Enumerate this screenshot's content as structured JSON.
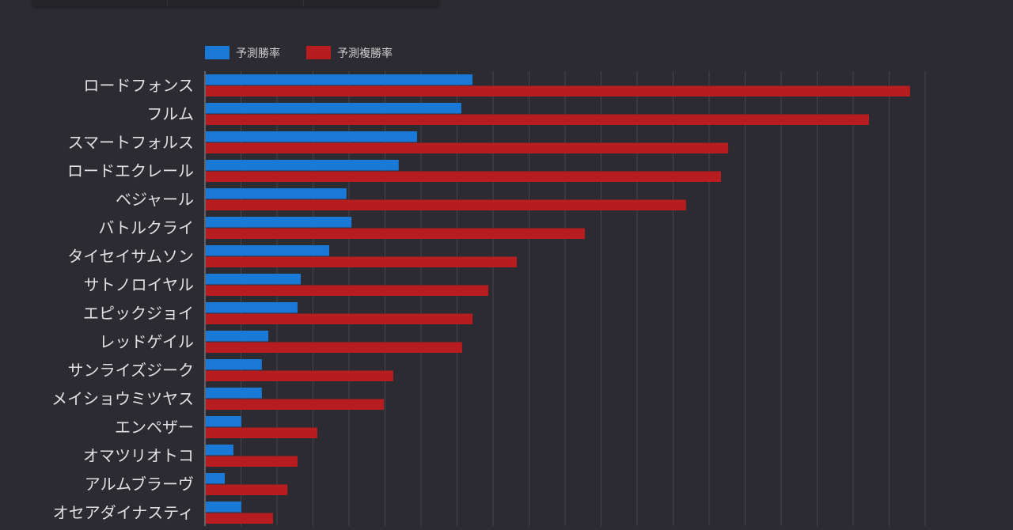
{
  "chart_data": {
    "type": "bar",
    "orientation": "horizontal",
    "title": "",
    "xlabel": "",
    "ylabel": "",
    "xlim": [
      0,
      20
    ],
    "grid": true,
    "legend_placement": "top-left",
    "categories": [
      "ロードフォンス",
      "フルム",
      "スマートフォルス",
      "ロードエクレール",
      "ベジャール",
      "バトルクライ",
      "タイセイサムソン",
      "サトノロイヤル",
      "エピックジョイ",
      "レッドゲイル",
      "サンライズジーク",
      "メイショウミツヤス",
      "エンペザー",
      "オマツリオトコ",
      "アルムブラーヴ",
      "オセアダイナスティ"
    ],
    "series": [
      {
        "name": "予測勝率",
        "color": "#1a78d6",
        "values": [
          7.43,
          7.12,
          5.89,
          5.38,
          3.93,
          4.07,
          3.45,
          2.66,
          2.57,
          1.76,
          1.58,
          1.58,
          1.01,
          0.79,
          0.55,
          1.01
        ]
      },
      {
        "name": "予測複勝率",
        "color": "#b71c1e",
        "values": [
          19.58,
          18.44,
          14.53,
          14.33,
          13.36,
          10.55,
          8.66,
          7.87,
          7.43,
          7.14,
          5.23,
          4.97,
          3.12,
          2.57,
          2.29,
          1.89
        ]
      }
    ]
  }
}
